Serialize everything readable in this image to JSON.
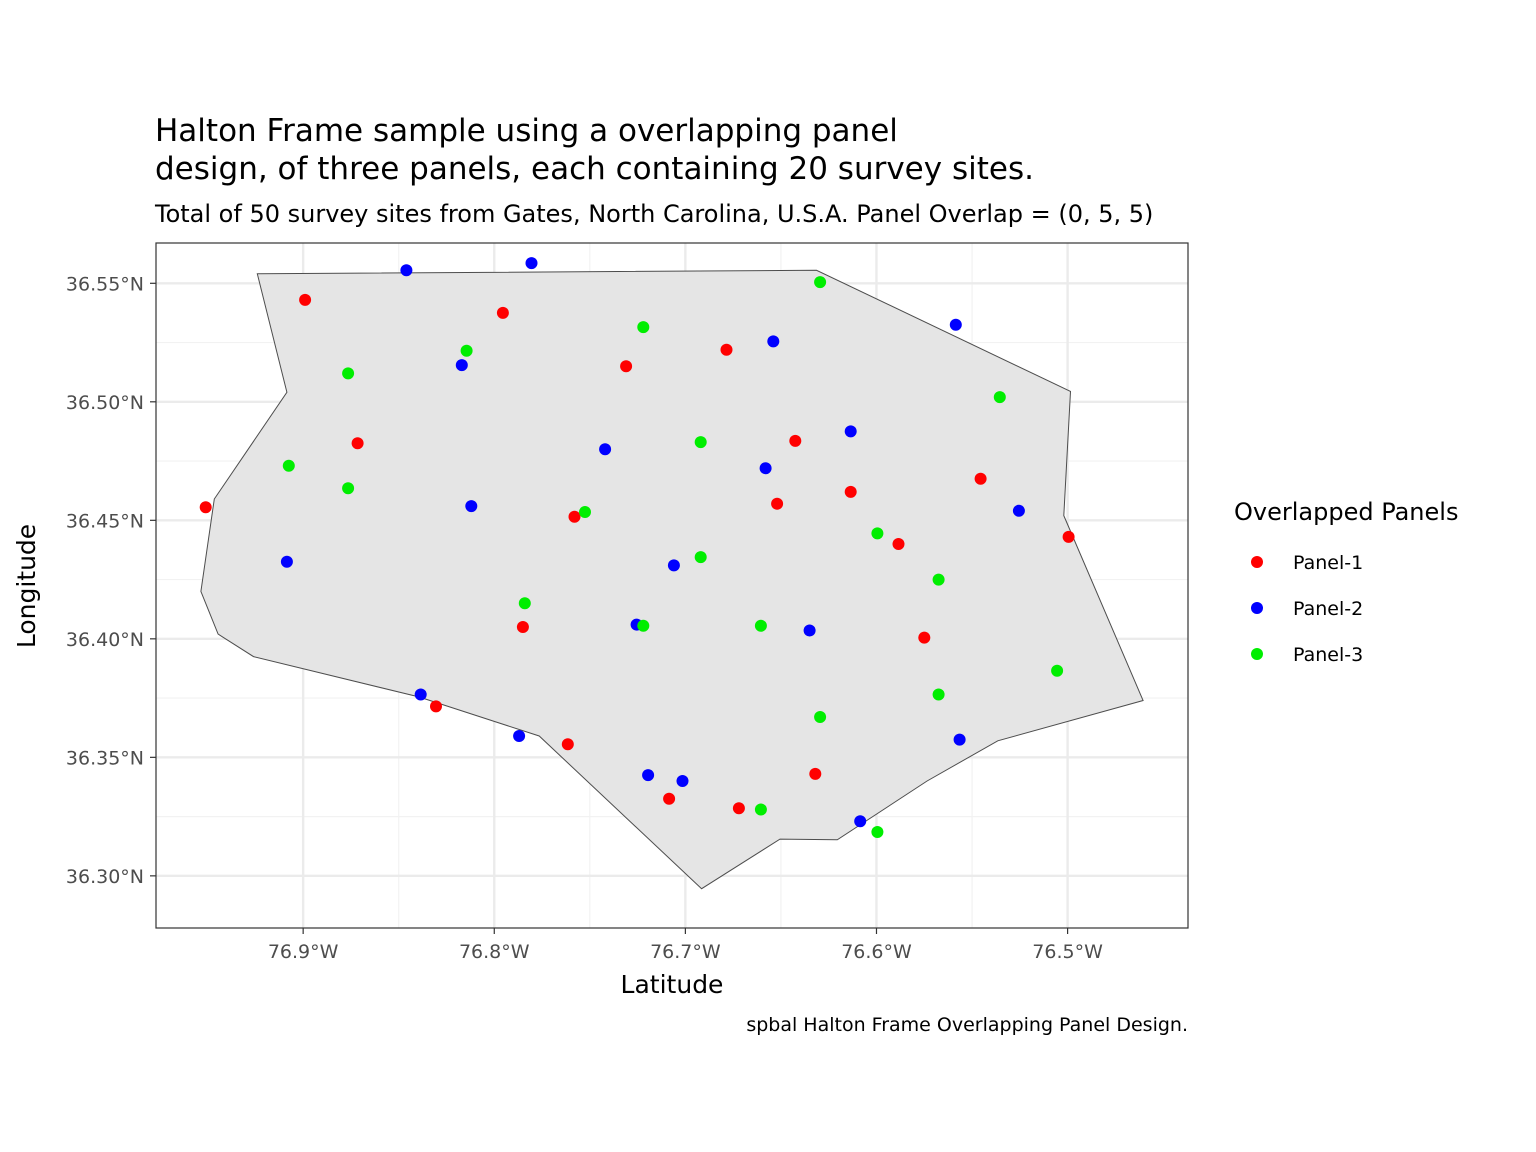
{
  "chart_data": {
    "type": "scatter",
    "title_lines": [
      "Halton Frame sample using a overlapping panel",
      "design, of three panels, each containing 20 survey sites."
    ],
    "subtitle": "Total of 50 survey sites from Gates, North Carolina, U.S.A. Panel Overlap = (0, 5, 5)",
    "xlabel": "Latitude",
    "ylabel": "Longitude",
    "caption": "spbal Halton Frame Overlapping Panel Design.",
    "legend_title": "Overlapped Panels",
    "legend_position": "right",
    "grid": true,
    "xlim": [
      -76.977,
      -76.437
    ],
    "ylim": [
      36.278,
      36.567
    ],
    "x_ticks": [
      {
        "value": -76.9,
        "label": "76.9°W"
      },
      {
        "value": -76.8,
        "label": "76.8°W"
      },
      {
        "value": -76.7,
        "label": "76.7°W"
      },
      {
        "value": -76.6,
        "label": "76.6°W"
      },
      {
        "value": -76.5,
        "label": "76.5°W"
      }
    ],
    "y_ticks": [
      {
        "value": 36.3,
        "label": "36.30°N"
      },
      {
        "value": 36.35,
        "label": "36.35°N"
      },
      {
        "value": 36.4,
        "label": "36.40°N"
      },
      {
        "value": 36.45,
        "label": "36.45°N"
      },
      {
        "value": 36.5,
        "label": "36.50°N"
      },
      {
        "value": 36.55,
        "label": "36.55°N"
      }
    ],
    "boundary": {
      "fill": "#e5e5e5",
      "stroke": "#4d4d4d",
      "points": [
        [
          -76.924,
          36.554
        ],
        [
          -76.6314,
          36.5555
        ],
        [
          -76.4985,
          36.5044
        ],
        [
          -76.502,
          36.452
        ],
        [
          -76.4605,
          36.374
        ],
        [
          -76.5365,
          36.357
        ],
        [
          -76.5735,
          36.34
        ],
        [
          -76.6205,
          36.3152
        ],
        [
          -76.6505,
          36.3155
        ],
        [
          -76.6915,
          36.2946
        ],
        [
          -76.7765,
          36.359
        ],
        [
          -76.8395,
          36.3755
        ],
        [
          -76.926,
          36.3925
        ],
        [
          -76.9445,
          36.402
        ],
        [
          -76.9535,
          36.42
        ],
        [
          -76.9465,
          36.459
        ],
        [
          -76.9085,
          36.504
        ]
      ]
    },
    "series": [
      {
        "name": "Panel-1",
        "color": "#ff0000",
        "points": [
          [
            -76.899,
            36.543
          ],
          [
            -76.7955,
            36.5375
          ],
          [
            -76.6785,
            36.522
          ],
          [
            -76.731,
            36.515
          ],
          [
            -76.8715,
            36.4825
          ],
          [
            -76.6425,
            36.4835
          ],
          [
            -76.5455,
            36.4675
          ],
          [
            -76.6135,
            36.462
          ],
          [
            -76.652,
            36.457
          ],
          [
            -76.951,
            36.4555
          ],
          [
            -76.758,
            36.4515
          ],
          [
            -76.5885,
            36.44
          ],
          [
            -76.4995,
            36.443
          ],
          [
            -76.785,
            36.405
          ],
          [
            -76.575,
            36.4005
          ],
          [
            -76.8305,
            36.3715
          ],
          [
            -76.7615,
            36.3555
          ],
          [
            -76.632,
            36.343
          ],
          [
            -76.7085,
            36.3325
          ],
          [
            -76.672,
            36.3285
          ]
        ]
      },
      {
        "name": "Panel-2",
        "color": "#0000ff",
        "points": [
          [
            -76.7805,
            36.5585
          ],
          [
            -76.846,
            36.5555
          ],
          [
            -76.5585,
            36.5325
          ],
          [
            -76.654,
            36.5255
          ],
          [
            -76.817,
            36.5155
          ],
          [
            -76.6135,
            36.4875
          ],
          [
            -76.742,
            36.48
          ],
          [
            -76.658,
            36.472
          ],
          [
            -76.812,
            36.456
          ],
          [
            -76.5255,
            36.454
          ],
          [
            -76.9085,
            36.4325
          ],
          [
            -76.706,
            36.431
          ],
          [
            -76.7255,
            36.406
          ],
          [
            -76.635,
            36.4035
          ],
          [
            -76.8385,
            36.3765
          ],
          [
            -76.787,
            36.359
          ],
          [
            -76.5565,
            36.3575
          ],
          [
            -76.7195,
            36.3425
          ],
          [
            -76.7015,
            36.34
          ],
          [
            -76.6085,
            36.323
          ]
        ]
      },
      {
        "name": "Panel-3",
        "color": "#00ee00",
        "points": [
          [
            -76.6295,
            36.5505
          ],
          [
            -76.722,
            36.5315
          ],
          [
            -76.8145,
            36.5215
          ],
          [
            -76.8765,
            36.512
          ],
          [
            -76.5355,
            36.502
          ],
          [
            -76.692,
            36.483
          ],
          [
            -76.9075,
            36.473
          ],
          [
            -76.8765,
            36.4635
          ],
          [
            -76.7525,
            36.4535
          ],
          [
            -76.5995,
            36.4445
          ],
          [
            -76.692,
            36.4345
          ],
          [
            -76.5675,
            36.425
          ],
          [
            -76.784,
            36.415
          ],
          [
            -76.722,
            36.4055
          ],
          [
            -76.6605,
            36.4055
          ],
          [
            -76.5055,
            36.3865
          ],
          [
            -76.5675,
            36.3765
          ],
          [
            -76.6295,
            36.367
          ],
          [
            -76.6605,
            36.328
          ],
          [
            -76.5995,
            36.3185
          ]
        ]
      }
    ]
  }
}
